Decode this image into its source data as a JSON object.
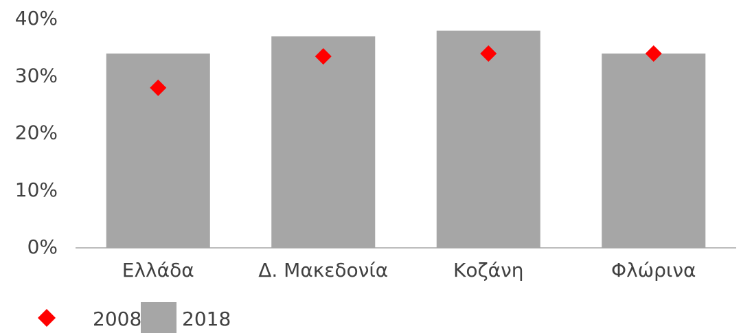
{
  "chart_data": {
    "type": "bar",
    "categories": [
      "Ελλάδα",
      "Δ. Μακεδονία",
      "Κοζάνη",
      "Φλώρινα"
    ],
    "series": [
      {
        "name": "2008",
        "type": "scatter",
        "color": "#ff0000",
        "values": [
          28,
          33.5,
          34,
          34
        ]
      },
      {
        "name": "2018",
        "type": "bar",
        "color": "#a6a6a6",
        "values": [
          34,
          37,
          38,
          34
        ]
      }
    ],
    "ylim": [
      0,
      40
    ],
    "yticks": [
      {
        "value": 0,
        "label": "0%"
      },
      {
        "value": 10,
        "label": "10%"
      },
      {
        "value": 20,
        "label": "20%"
      },
      {
        "value": 30,
        "label": "30%"
      },
      {
        "value": 40,
        "label": "40%"
      }
    ],
    "grid": false,
    "legend": "bottom-left"
  }
}
